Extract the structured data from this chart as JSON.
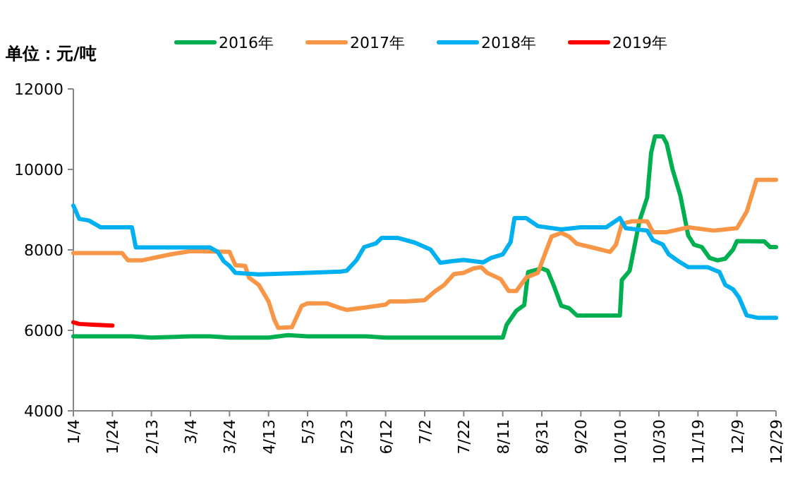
{
  "chart_data": {
    "type": "line",
    "ylabel": "单位：元/吨",
    "legend": "top",
    "ylim": [
      4000,
      12000
    ],
    "yticks": [
      4000,
      6000,
      8000,
      10000,
      12000
    ],
    "xlim": [
      "--01-04",
      "--12-29"
    ],
    "xticks": [
      {
        "value": "--01-04",
        "label": "1/4"
      },
      {
        "value": "--01-24",
        "label": "1/24"
      },
      {
        "value": "--02-13",
        "label": "2/13"
      },
      {
        "value": "--03-04",
        "label": "3/4"
      },
      {
        "value": "--03-24",
        "label": "3/24"
      },
      {
        "value": "--04-13",
        "label": "4/13"
      },
      {
        "value": "--05-03",
        "label": "5/3"
      },
      {
        "value": "--05-23",
        "label": "5/23"
      },
      {
        "value": "--06-12",
        "label": "6/12"
      },
      {
        "value": "--07-02",
        "label": "7/2"
      },
      {
        "value": "--07-22",
        "label": "7/22"
      },
      {
        "value": "--08-11",
        "label": "8/11"
      },
      {
        "value": "--08-31",
        "label": "8/31"
      },
      {
        "value": "--09-20",
        "label": "9/20"
      },
      {
        "value": "--10-10",
        "label": "10/10"
      },
      {
        "value": "--10-30",
        "label": "10/30"
      },
      {
        "value": "--11-19",
        "label": "11/19"
      },
      {
        "value": "--12-09",
        "label": "12/9"
      },
      {
        "value": "--12-29",
        "label": "12/29"
      }
    ],
    "series": [
      {
        "name": "2016年",
        "color": "#00b050",
        "x": [
          "--01-04",
          "--02-03",
          "--02-13",
          "--03-04",
          "--03-14",
          "--03-24",
          "--04-13",
          "--04-23",
          "--05-03",
          "--06-02",
          "--06-12",
          "--08-11",
          "--08-13",
          "--08-18",
          "--08-22",
          "--08-24",
          "--08-31",
          "--09-03",
          "--09-06",
          "--09-10",
          "--09-14",
          "--09-18",
          "--10-10",
          "--10-11",
          "--10-15",
          "--10-20",
          "--10-24",
          "--10-26",
          "--10-28",
          "--11-01",
          "--11-03",
          "--11-06",
          "--11-10",
          "--11-14",
          "--11-17",
          "--11-21",
          "--11-25",
          "--11-29",
          "--12-03",
          "--12-07",
          "--12-09",
          "--12-23",
          "--12-26",
          "--12-29"
        ],
        "values": [
          5850,
          5850,
          5820,
          5850,
          5850,
          5820,
          5820,
          5880,
          5850,
          5850,
          5820,
          5820,
          6140,
          6490,
          6630,
          7450,
          7540,
          7480,
          7130,
          6610,
          6550,
          6370,
          6370,
          7250,
          7480,
          8710,
          9300,
          10410,
          10820,
          10820,
          10640,
          10000,
          9350,
          8360,
          8130,
          8070,
          7800,
          7740,
          7780,
          8010,
          8220,
          8210,
          8070,
          8070
        ]
      },
      {
        "name": "2017年",
        "color": "#f79646",
        "x": [
          "--01-04",
          "--01-29",
          "--02-01",
          "--02-08",
          "--02-23",
          "--03-04",
          "--03-24",
          "--03-27",
          "--04-01",
          "--04-03",
          "--04-08",
          "--04-13",
          "--04-16",
          "--04-18",
          "--04-25",
          "--04-30",
          "--05-03",
          "--05-13",
          "--05-20",
          "--05-23",
          "--06-02",
          "--06-12",
          "--06-14",
          "--06-22",
          "--07-02",
          "--07-07",
          "--07-12",
          "--07-17",
          "--07-22",
          "--07-27",
          "--07-31",
          "--08-03",
          "--08-07",
          "--08-10",
          "--08-14",
          "--08-18",
          "--08-23",
          "--08-29",
          "--09-02",
          "--09-05",
          "--09-10",
          "--09-14",
          "--09-18",
          "--09-25",
          "--10-05",
          "--10-08",
          "--10-11",
          "--10-16",
          "--10-24",
          "--10-27",
          "--11-03",
          "--11-14",
          "--11-27",
          "--12-09",
          "--12-14",
          "--12-19",
          "--12-29"
        ],
        "values": [
          7920,
          7920,
          7740,
          7740,
          7890,
          7970,
          7950,
          7620,
          7600,
          7310,
          7130,
          6720,
          6260,
          6060,
          6080,
          6610,
          6670,
          6670,
          6550,
          6510,
          6570,
          6640,
          6720,
          6720,
          6750,
          6960,
          7130,
          7400,
          7430,
          7540,
          7570,
          7430,
          7340,
          7270,
          6980,
          6980,
          7310,
          7430,
          7950,
          8330,
          8420,
          8330,
          8150,
          8070,
          7950,
          8130,
          8650,
          8710,
          8710,
          8440,
          8440,
          8560,
          8480,
          8540,
          8950,
          9740,
          9740
        ]
      },
      {
        "name": "2018年",
        "color": "#00b0f0",
        "x": [
          "--01-04",
          "--01-07",
          "--01-12",
          "--01-18",
          "--01-24",
          "--02-03",
          "--02-05",
          "--02-23",
          "--03-14",
          "--03-18",
          "--03-21",
          "--03-24",
          "--03-27",
          "--04-08",
          "--05-03",
          "--05-20",
          "--05-23",
          "--05-28",
          "--06-01",
          "--06-07",
          "--06-10",
          "--06-18",
          "--06-27",
          "--07-05",
          "--07-10",
          "--07-16",
          "--07-22",
          "--08-01",
          "--08-05",
          "--08-11",
          "--08-15",
          "--08-17",
          "--08-23",
          "--08-29",
          "--09-10",
          "--09-20",
          "--10-03",
          "--10-10",
          "--10-13",
          "--10-24",
          "--10-27",
          "--11-01",
          "--11-04",
          "--11-09",
          "--11-14",
          "--11-24",
          "--11-30",
          "--12-03",
          "--12-07",
          "--12-10",
          "--12-14",
          "--12-20",
          "--12-29"
        ],
        "values": [
          9100,
          8770,
          8730,
          8560,
          8560,
          8560,
          8060,
          8060,
          8060,
          7950,
          7720,
          7600,
          7430,
          7390,
          7430,
          7460,
          7480,
          7740,
          8070,
          8160,
          8300,
          8300,
          8180,
          8010,
          7680,
          7720,
          7750,
          7690,
          7800,
          7890,
          8190,
          8790,
          8790,
          8590,
          8510,
          8560,
          8560,
          8790,
          8540,
          8480,
          8240,
          8130,
          7890,
          7720,
          7570,
          7570,
          7450,
          7130,
          7020,
          6820,
          6370,
          6310,
          6310
        ]
      },
      {
        "name": "2019年",
        "color": "#ff0000",
        "x": [
          "--01-04",
          "--01-07",
          "--01-14",
          "--01-24"
        ],
        "values": [
          6200,
          6160,
          6140,
          6120
        ]
      }
    ]
  }
}
